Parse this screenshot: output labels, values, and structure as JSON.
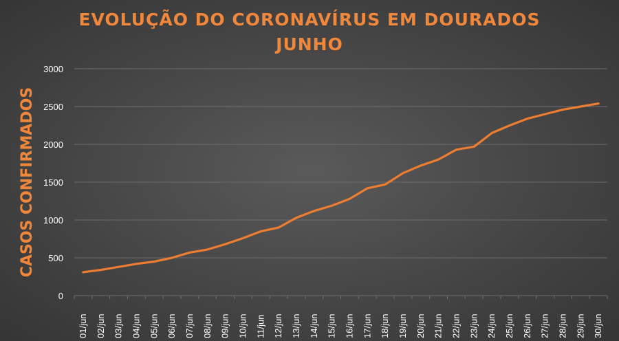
{
  "chart_data": {
    "type": "line",
    "title": "EVOLUÇÃO DO CORONAVÍRUS EM DOURADOS",
    "subtitle": "JUNHO",
    "xlabel": "",
    "ylabel": "CASOS CONFIRMADOS",
    "ylim": [
      0,
      3000
    ],
    "yticks": [
      "0",
      "500",
      "1000",
      "1500",
      "2000",
      "2500",
      "3000"
    ],
    "grid": true,
    "x": [
      "01/jun",
      "02/jun",
      "03/jun",
      "04/jun",
      "05/jun",
      "06/jun",
      "07/jun",
      "08/jun",
      "09/jun",
      "10/jun",
      "11/jun",
      "12/jun",
      "13/jun",
      "14/jun",
      "15/jun",
      "16/jun",
      "17/jun",
      "18/jun",
      "19/jun",
      "20/jun",
      "21/jun",
      "22/jun",
      "23/jun",
      "24/jun",
      "25/jun",
      "26/jun",
      "27/jun",
      "28/jun",
      "29/jun",
      "30/jun"
    ],
    "series": [
      {
        "values": [
          310,
          340,
          380,
          420,
          450,
          500,
          570,
          610,
          680,
          760,
          850,
          900,
          1030,
          1120,
          1190,
          1280,
          1420,
          1470,
          1620,
          1720,
          1800,
          1930,
          1970,
          2150,
          2250,
          2340,
          2400,
          2460,
          2500,
          2540
        ],
        "color": "#ed7d31"
      }
    ],
    "colors": {
      "title": "#f0873a",
      "gridline": "#6e6e6e",
      "tick_text": "#ffffff"
    }
  }
}
